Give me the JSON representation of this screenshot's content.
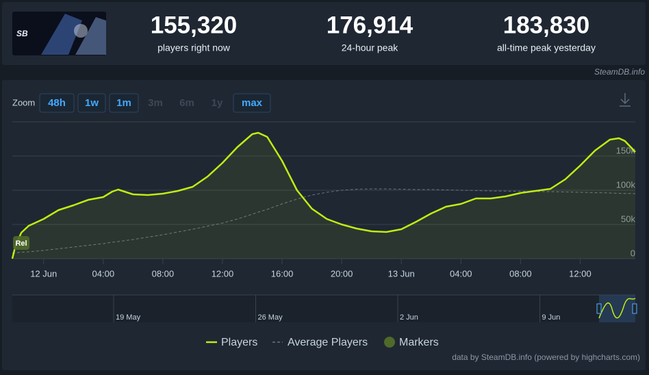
{
  "header": {
    "stats": [
      {
        "value": "155,320",
        "label": "players right now"
      },
      {
        "value": "176,914",
        "label": "24-hour peak"
      },
      {
        "value": "183,830",
        "label": "all-time peak yesterday"
      }
    ],
    "source": "SteamDB.info"
  },
  "zoom": {
    "label": "Zoom",
    "buttons": [
      {
        "label": "48h",
        "enabled": true
      },
      {
        "label": "1w",
        "enabled": true
      },
      {
        "label": "1m",
        "enabled": true
      },
      {
        "label": "3m",
        "enabled": false
      },
      {
        "label": "6m",
        "enabled": false
      },
      {
        "label": "1y",
        "enabled": false
      },
      {
        "label": "max",
        "enabled": true
      }
    ]
  },
  "chart_data": {
    "type": "line",
    "x": [
      -2.1,
      -1.9,
      -1.5,
      -1,
      0,
      1,
      2,
      3,
      4,
      4.6,
      5,
      6,
      7,
      8,
      9,
      10,
      11,
      12,
      13,
      14,
      14.4,
      15,
      16,
      17,
      18,
      19,
      20,
      21,
      22,
      23,
      24,
      25,
      26,
      27,
      28,
      29,
      30,
      31,
      32,
      33,
      34,
      35,
      36,
      37,
      38,
      38.6,
      39,
      39.7
    ],
    "series": [
      {
        "name": "Players",
        "color": "#beee11",
        "style": "solid",
        "values": [
          0,
          18000,
          38000,
          48000,
          58000,
          71000,
          78000,
          86000,
          90000,
          98000,
          101000,
          94000,
          93000,
          95000,
          99000,
          105000,
          120000,
          140000,
          163000,
          182000,
          184000,
          178000,
          143000,
          100000,
          73000,
          58000,
          50000,
          44000,
          40000,
          39000,
          43000,
          54000,
          66000,
          76000,
          80000,
          88000,
          88000,
          91000,
          96000,
          99000,
          102000,
          116000,
          136000,
          158000,
          174000,
          176000,
          172000,
          156000
        ]
      },
      {
        "name": "Average Players",
        "color": "#6b7380",
        "style": "dashed",
        "values": [
          8000,
          8500,
          9500,
          10000,
          12000,
          14500,
          17000,
          19500,
          22000,
          24000,
          25000,
          28000,
          31500,
          35000,
          39000,
          43000,
          47500,
          52000,
          58000,
          65000,
          68000,
          72000,
          80000,
          87000,
          93000,
          97000,
          100000,
          101500,
          102000,
          102000,
          101500,
          101000,
          101000,
          100500,
          100000,
          99500,
          99000,
          98700,
          98500,
          98200,
          98000,
          97500,
          97000,
          96500,
          96000,
          95500,
          95300,
          95000
        ]
      }
    ],
    "xlim": [
      -2.1,
      39.7
    ],
    "xticks": [
      {
        "value": 0,
        "label": "12 Jun"
      },
      {
        "value": 4,
        "label": "04:00"
      },
      {
        "value": 8,
        "label": "08:00"
      },
      {
        "value": 12,
        "label": "12:00"
      },
      {
        "value": 16,
        "label": "16:00"
      },
      {
        "value": 20,
        "label": "20:00"
      },
      {
        "value": 24,
        "label": "13 Jun"
      },
      {
        "value": 28,
        "label": "04:00"
      },
      {
        "value": 32,
        "label": "08:00"
      },
      {
        "value": 36,
        "label": "12:00"
      }
    ],
    "ylim": [
      0,
      200000
    ],
    "yticks": [
      0,
      {
        "value": 50000,
        "label": "50k"
      },
      {
        "value": 100000,
        "label": "100k"
      },
      {
        "value": 150000,
        "label": "150k"
      }
    ],
    "grid": true,
    "markers": [
      {
        "label": "Rel",
        "x": -1.5
      }
    ],
    "markers_label": "Markers",
    "navigator_labels": [
      "19 May",
      "26 May",
      "2 Jun",
      "9 Jun"
    ],
    "credits": "data by SteamDB.info (powered by highcharts.com)"
  }
}
